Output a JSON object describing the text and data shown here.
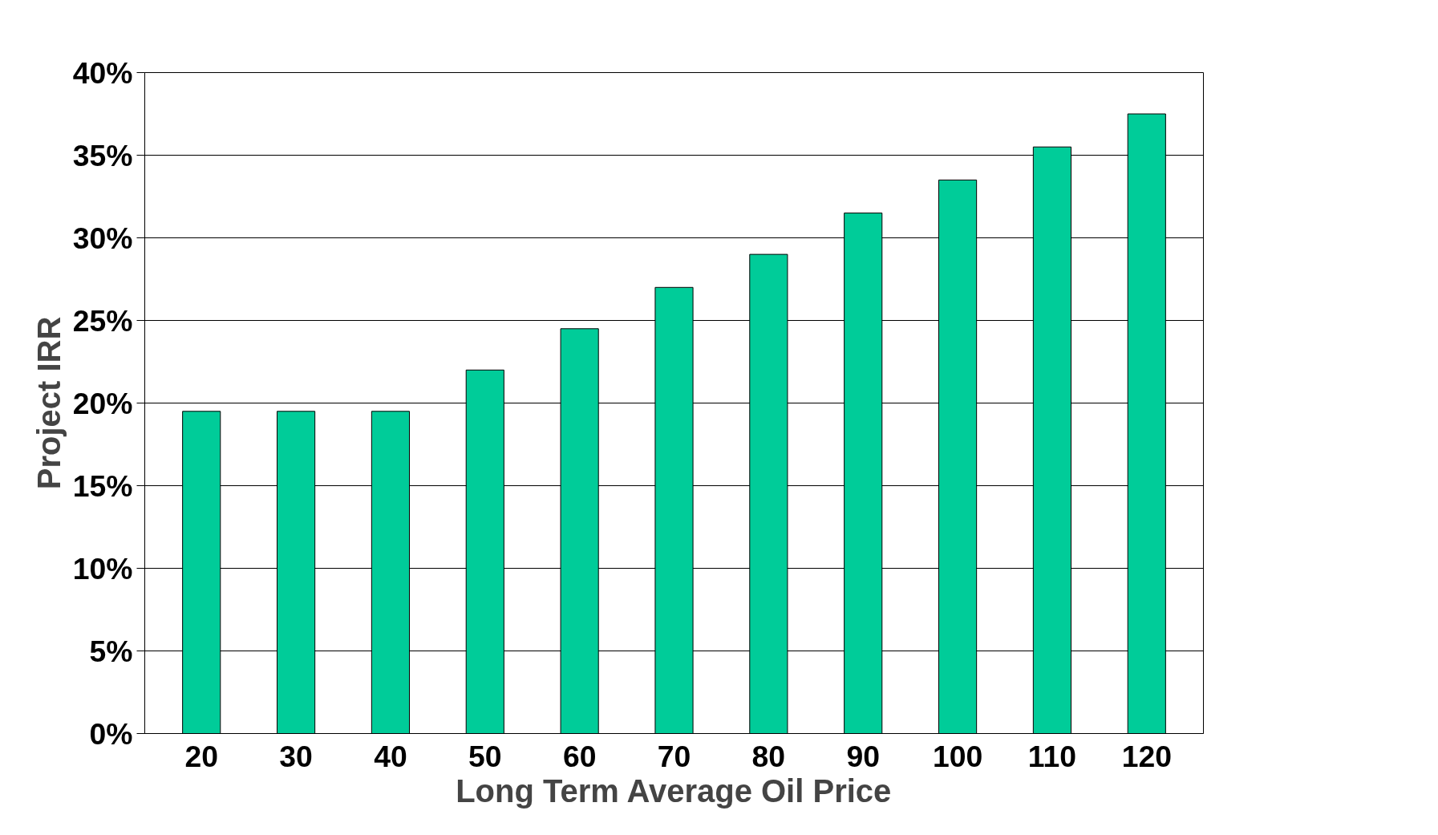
{
  "chart_data": {
    "type": "bar",
    "xlabel": "Long Term Average Oil Price",
    "ylabel": "Project IRR",
    "categories": [
      "20",
      "30",
      "40",
      "50",
      "60",
      "70",
      "80",
      "90",
      "100",
      "110",
      "120"
    ],
    "values": [
      19.5,
      19.5,
      19.5,
      22,
      24.5,
      27,
      29,
      31.5,
      33.5,
      35.5,
      37.5
    ],
    "color": "#00cc99",
    "ylim": [
      0,
      40
    ],
    "yticks": [
      {
        "value": 0,
        "label": "0%"
      },
      {
        "value": 5,
        "label": "5%"
      },
      {
        "value": 10,
        "label": "10%"
      },
      {
        "value": 15,
        "label": "15%"
      },
      {
        "value": 20,
        "label": "20%"
      },
      {
        "value": 25,
        "label": "25%"
      },
      {
        "value": 30,
        "label": "30%"
      },
      {
        "value": 35,
        "label": "35%"
      },
      {
        "value": 40,
        "label": "40%"
      }
    ],
    "grid": "y"
  }
}
